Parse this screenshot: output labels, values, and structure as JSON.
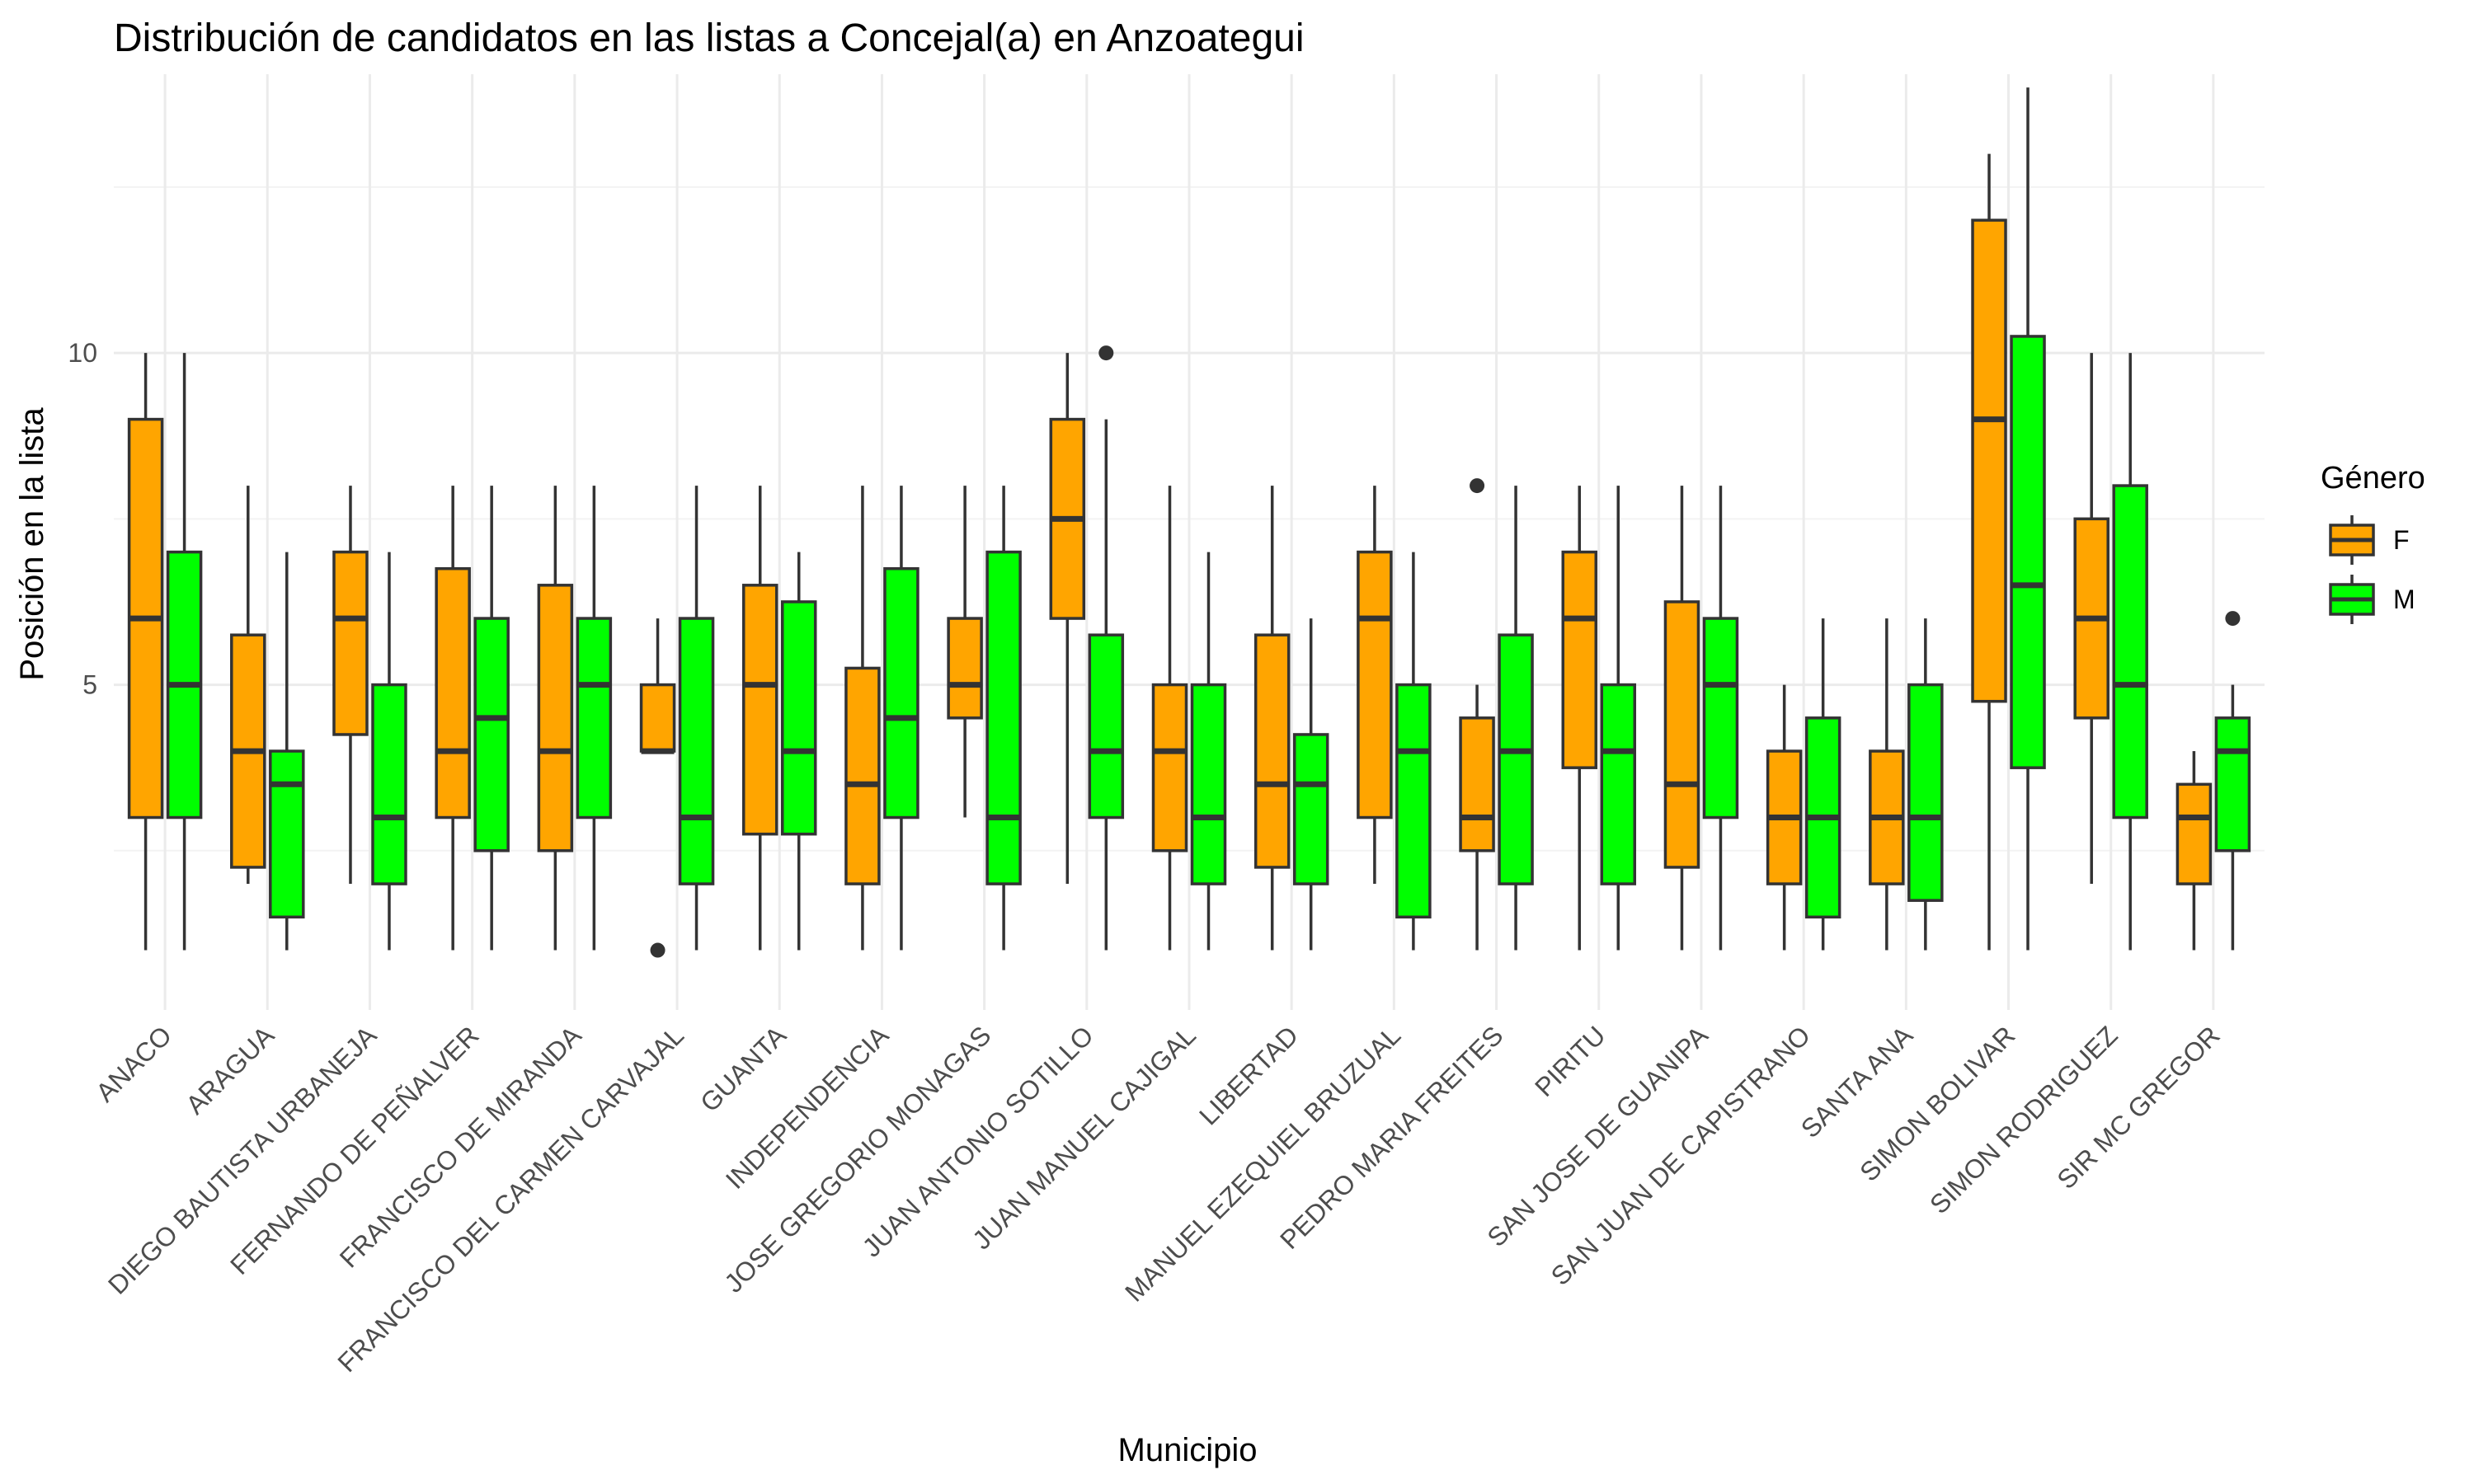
{
  "chart_data": {
    "type": "boxplot",
    "title": "Distribución de candidatos en las listas a Concejal(a) en Anzoategui",
    "xlabel": "Municipio",
    "ylabel": "Posición en la lista",
    "ylim": [
      0.1,
      14.2
    ],
    "y_ticks": [
      5,
      10
    ],
    "grid": true,
    "legend": {
      "title": "Género",
      "position": "right"
    },
    "categories": [
      "ANACO",
      "ARAGUA",
      "DIEGO BAUTISTA URBANEJA",
      "FERNANDO DE PEÑALVER",
      "FRANCISCO DE MIRANDA",
      "FRANCISCO DEL CARMEN CARVAJAL",
      "GUANTA",
      "INDEPENDENCIA",
      "JOSE GREGORIO MONAGAS",
      "JUAN ANTONIO SOTILLO",
      "JUAN MANUEL CAJIGAL",
      "LIBERTAD",
      "MANUEL EZEQUIEL BRUZUAL",
      "PEDRO MARIA FREITES",
      "PIRITU",
      "SAN JOSE DE GUANIPA",
      "SAN JUAN DE CAPISTRANO",
      "SANTA ANA",
      "SIMON BOLIVAR",
      "SIMON RODRIGUEZ",
      "SIR MC GREGOR"
    ],
    "series": [
      {
        "name": "F",
        "color": "#FFA500",
        "boxes": [
          {
            "min": 1,
            "q1": 3,
            "median": 6,
            "q3": 9,
            "max": 10,
            "outliers": []
          },
          {
            "min": 2,
            "q1": 2.25,
            "median": 4,
            "q3": 5.75,
            "max": 8,
            "outliers": []
          },
          {
            "min": 2,
            "q1": 4.25,
            "median": 6,
            "q3": 7,
            "max": 8,
            "outliers": []
          },
          {
            "min": 1,
            "q1": 3,
            "median": 4,
            "q3": 6.75,
            "max": 8,
            "outliers": []
          },
          {
            "min": 1,
            "q1": 2.5,
            "median": 4,
            "q3": 6.5,
            "max": 8,
            "outliers": []
          },
          {
            "min": 4,
            "q1": 4,
            "median": 4,
            "q3": 5,
            "max": 6,
            "outliers": [
              1
            ]
          },
          {
            "min": 1,
            "q1": 2.75,
            "median": 5,
            "q3": 6.5,
            "max": 8,
            "outliers": []
          },
          {
            "min": 1,
            "q1": 2,
            "median": 3.5,
            "q3": 5.25,
            "max": 8,
            "outliers": []
          },
          {
            "min": 3,
            "q1": 4.5,
            "median": 5,
            "q3": 6,
            "max": 8,
            "outliers": []
          },
          {
            "min": 2,
            "q1": 6,
            "median": 7.5,
            "q3": 9,
            "max": 10,
            "outliers": []
          },
          {
            "min": 1,
            "q1": 2.5,
            "median": 4,
            "q3": 5,
            "max": 8,
            "outliers": []
          },
          {
            "min": 1,
            "q1": 2.25,
            "median": 3.5,
            "q3": 5.75,
            "max": 8,
            "outliers": []
          },
          {
            "min": 2,
            "q1": 3,
            "median": 6,
            "q3": 7,
            "max": 8,
            "outliers": []
          },
          {
            "min": 1,
            "q1": 2.5,
            "median": 3,
            "q3": 4.5,
            "max": 5,
            "outliers": [
              8
            ]
          },
          {
            "min": 1,
            "q1": 3.75,
            "median": 6,
            "q3": 7,
            "max": 8,
            "outliers": []
          },
          {
            "min": 1,
            "q1": 2.25,
            "median": 3.5,
            "q3": 6.25,
            "max": 8,
            "outliers": []
          },
          {
            "min": 1,
            "q1": 2,
            "median": 3,
            "q3": 4,
            "max": 5,
            "outliers": []
          },
          {
            "min": 1,
            "q1": 2,
            "median": 3,
            "q3": 4,
            "max": 6,
            "outliers": []
          },
          {
            "min": 1,
            "q1": 4.75,
            "median": 9,
            "q3": 12,
            "max": 13,
            "outliers": []
          },
          {
            "min": 2,
            "q1": 4.5,
            "median": 6,
            "q3": 7.5,
            "max": 10,
            "outliers": []
          },
          {
            "min": 1,
            "q1": 2,
            "median": 3,
            "q3": 3.5,
            "max": 4,
            "outliers": []
          }
        ]
      },
      {
        "name": "M",
        "color": "#00FF00",
        "boxes": [
          {
            "min": 1,
            "q1": 3,
            "median": 5,
            "q3": 7,
            "max": 10,
            "outliers": []
          },
          {
            "min": 1,
            "q1": 1.5,
            "median": 3.5,
            "q3": 4,
            "max": 7,
            "outliers": []
          },
          {
            "min": 1,
            "q1": 2,
            "median": 3,
            "q3": 5,
            "max": 7,
            "outliers": []
          },
          {
            "min": 1,
            "q1": 2.5,
            "median": 4.5,
            "q3": 6,
            "max": 8,
            "outliers": []
          },
          {
            "min": 1,
            "q1": 3,
            "median": 5,
            "q3": 6,
            "max": 8,
            "outliers": []
          },
          {
            "min": 1,
            "q1": 2,
            "median": 3,
            "q3": 6,
            "max": 8,
            "outliers": []
          },
          {
            "min": 1,
            "q1": 2.75,
            "median": 4,
            "q3": 6.25,
            "max": 7,
            "outliers": []
          },
          {
            "min": 1,
            "q1": 3,
            "median": 4.5,
            "q3": 6.75,
            "max": 8,
            "outliers": []
          },
          {
            "min": 1,
            "q1": 2,
            "median": 3,
            "q3": 7,
            "max": 8,
            "outliers": []
          },
          {
            "min": 1,
            "q1": 3,
            "median": 4,
            "q3": 5.75,
            "max": 9,
            "outliers": [
              10
            ]
          },
          {
            "min": 1,
            "q1": 2,
            "median": 3,
            "q3": 5,
            "max": 7,
            "outliers": []
          },
          {
            "min": 1,
            "q1": 2,
            "median": 3.5,
            "q3": 4.25,
            "max": 6,
            "outliers": []
          },
          {
            "min": 1,
            "q1": 1.5,
            "median": 4,
            "q3": 5,
            "max": 7,
            "outliers": []
          },
          {
            "min": 1,
            "q1": 2,
            "median": 4,
            "q3": 5.75,
            "max": 8,
            "outliers": []
          },
          {
            "min": 1,
            "q1": 2,
            "median": 4,
            "q3": 5,
            "max": 8,
            "outliers": []
          },
          {
            "min": 1,
            "q1": 3,
            "median": 5,
            "q3": 6,
            "max": 8,
            "outliers": []
          },
          {
            "min": 1,
            "q1": 1.5,
            "median": 3,
            "q3": 4.5,
            "max": 6,
            "outliers": []
          },
          {
            "min": 1,
            "q1": 1.75,
            "median": 3,
            "q3": 5,
            "max": 6,
            "outliers": []
          },
          {
            "min": 1,
            "q1": 3.75,
            "median": 6.5,
            "q3": 10.25,
            "max": 14,
            "outliers": []
          },
          {
            "min": 1,
            "q1": 3,
            "median": 5,
            "q3": 8,
            "max": 10,
            "outliers": []
          },
          {
            "min": 1,
            "q1": 2.5,
            "median": 4,
            "q3": 4.5,
            "max": 5,
            "outliers": [
              6
            ]
          }
        ]
      }
    ]
  }
}
